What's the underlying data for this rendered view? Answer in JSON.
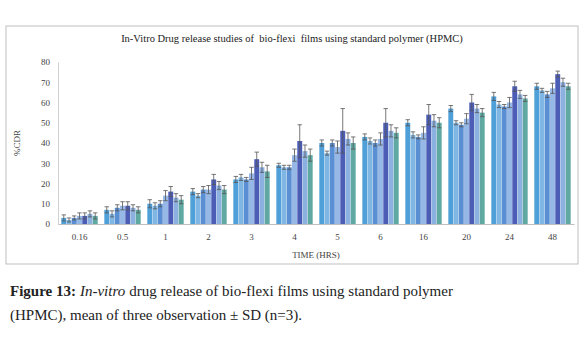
{
  "chart_data": {
    "type": "bar",
    "title": "In-Vitro Drug release studies of  bio-flexi  films using standard polymer (HPMC)",
    "x_label": "TIME (HRS)",
    "y_label": "%CDR",
    "annotations": [
      "Figure 13:",
      "In-vitro",
      "drug release of bio-flexi films using standard polymer",
      "(HPMC), mean of three observation ± SD (n=3)."
    ],
    "categories": [
      "0.16",
      "0.5",
      "1",
      "2",
      "3",
      "4",
      "5",
      "6",
      "16",
      "20",
      "24",
      "48"
    ],
    "series": [
      {
        "color": "#4f9fd8",
        "values": [
          3,
          7,
          10,
          16,
          22,
          29,
          40,
          43,
          50,
          57,
          63,
          68
        ],
        "errors": [
          1.5,
          1.5,
          2,
          1.5,
          1.5,
          1,
          1.5,
          1.5,
          1.5,
          1.5,
          2,
          1.5
        ]
      },
      {
        "color": "#7fb6e3",
        "values": [
          2,
          5,
          9,
          14,
          23,
          28,
          35,
          41,
          44,
          50,
          59,
          66
        ],
        "errors": [
          1,
          1.5,
          1.5,
          1,
          1.5,
          1,
          1,
          1.5,
          1.5,
          1,
          1.5,
          1
        ]
      },
      {
        "color": "#5a8fd3",
        "values": [
          3,
          8,
          10,
          17,
          22,
          28,
          40,
          40,
          43,
          49,
          58,
          64
        ],
        "errors": [
          1,
          1.5,
          1.5,
          1.5,
          1,
          1,
          1.5,
          1.5,
          1,
          1,
          1,
          1.5
        ]
      },
      {
        "color": "#96b8e6",
        "values": [
          4,
          9,
          14,
          17,
          25,
          34,
          38,
          42,
          45,
          52,
          60,
          67
        ],
        "errors": [
          1.5,
          2,
          2.5,
          2,
          3,
          3,
          3,
          3,
          3,
          2.5,
          2.5,
          2.5
        ]
      },
      {
        "color": "#4c5db6",
        "values": [
          4,
          9,
          16,
          22,
          32,
          41,
          46,
          50,
          54,
          60,
          68,
          74
        ],
        "errors": [
          1.5,
          2,
          2.5,
          2.5,
          3.5,
          8,
          11,
          7,
          5,
          4,
          2.5,
          1.5
        ]
      },
      {
        "color": "#8cb0e0",
        "values": [
          5,
          8,
          13,
          19,
          28,
          36,
          42,
          46,
          51,
          57,
          64,
          70
        ],
        "errors": [
          1.5,
          1.5,
          2,
          2,
          2.5,
          3,
          3,
          3,
          3,
          2,
          2,
          2
        ]
      },
      {
        "color": "#5fa9a2",
        "values": [
          4,
          7,
          12,
          17,
          26,
          34,
          40,
          45,
          50,
          55,
          62,
          68
        ],
        "errors": [
          1.5,
          1.5,
          2,
          2,
          3,
          3,
          3,
          2.5,
          2.5,
          2,
          1.5,
          1.5
        ]
      }
    ],
    "ylim": [
      0,
      80
    ],
    "yticks": [
      0,
      10,
      20,
      30,
      40,
      50,
      60,
      70,
      80
    ],
    "grid": false
  }
}
